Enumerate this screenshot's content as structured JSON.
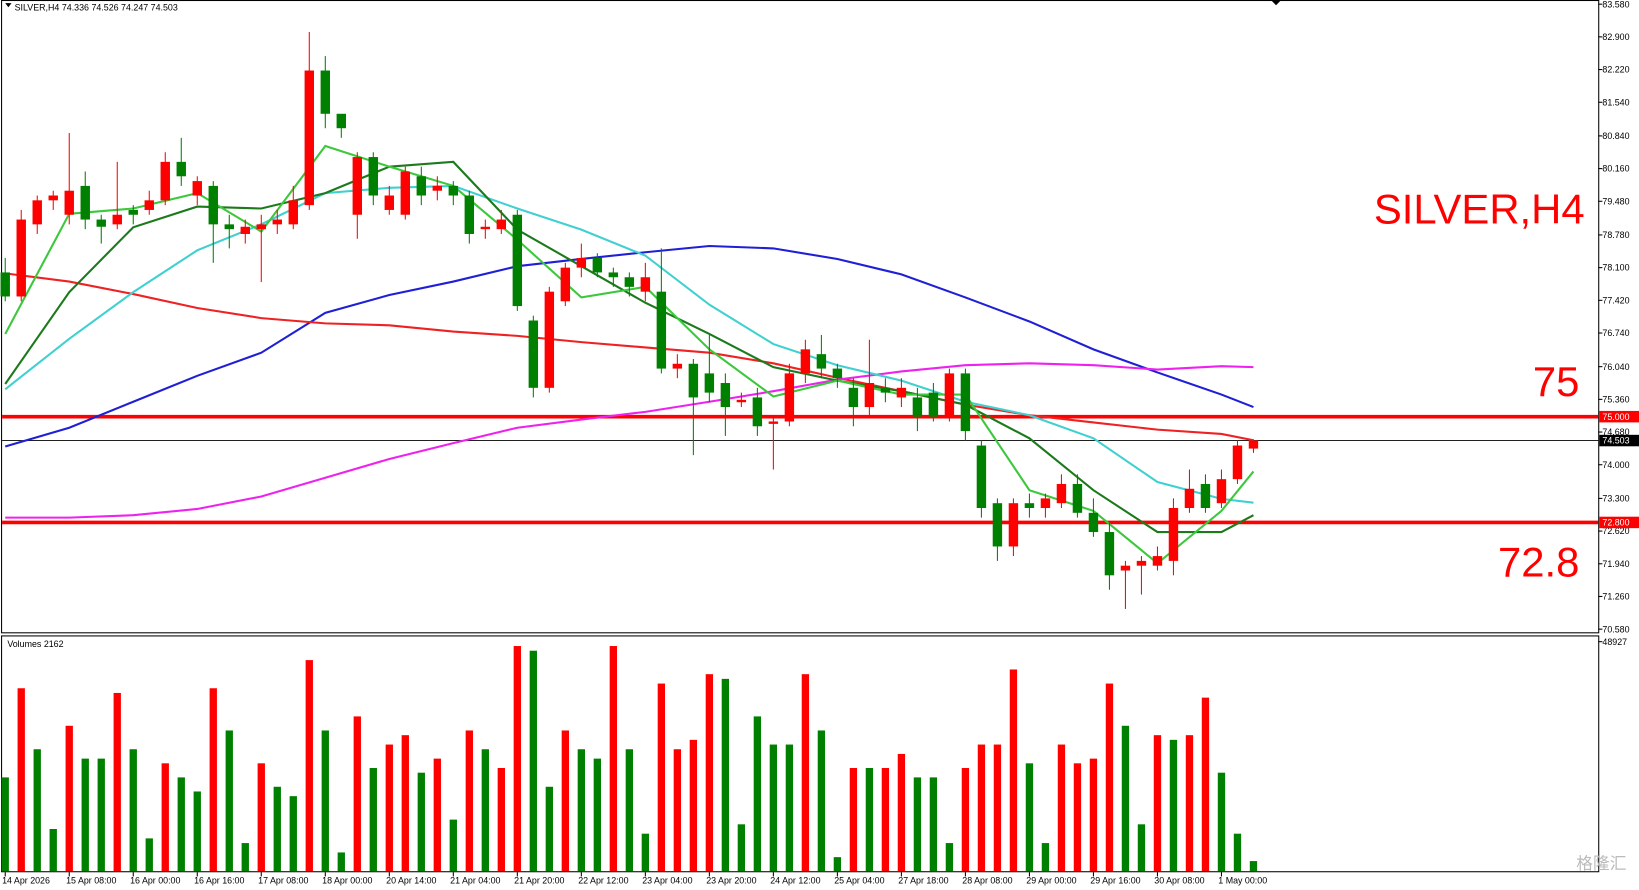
{
  "chart_data": {
    "type": "candlestick",
    "title": "SILVER,H4",
    "watermark": "格隆汇",
    "categories": [
      "14 Apr 2026",
      null,
      null,
      null,
      "15 Apr 08:00",
      null,
      null,
      null,
      "16 Apr 00:00",
      null,
      null,
      null,
      "16 Apr 16:00",
      null,
      null,
      null,
      "17 Apr 08:00",
      null,
      null,
      null,
      "18 Apr 00:00",
      null,
      null,
      null,
      "20 Apr 14:00",
      null,
      null,
      null,
      "21 Apr 04:00",
      null,
      null,
      null,
      "21 Apr 20:00",
      null,
      null,
      null,
      "22 Apr 12:00",
      null,
      null,
      null,
      "23 Apr 04:00",
      null,
      null,
      null,
      "23 Apr 20:00",
      null,
      null,
      null,
      "24 Apr 12:00",
      null,
      null,
      null,
      "25 Apr 04:00",
      null,
      null,
      null,
      "27 Apr 18:00",
      null,
      null,
      null,
      "28 Apr 08:00",
      null,
      null,
      null,
      "29 Apr 00:00",
      null,
      null,
      null,
      "29 Apr 16:00",
      null,
      null,
      null,
      "30 Apr 08:00",
      null,
      null,
      null,
      "1 May 00:00",
      null,
      null
    ],
    "open": [
      78.0,
      77.5,
      79.0,
      79.5,
      79.2,
      79.8,
      79.1,
      79.0,
      79.3,
      79.3,
      79.5,
      80.3,
      79.6,
      79.8,
      79.0,
      78.8,
      78.9,
      79.0,
      79.0,
      79.4,
      82.2,
      81.3,
      79.2,
      80.4,
      79.3,
      79.2,
      80.0,
      79.7,
      79.8,
      79.6,
      78.9,
      78.9,
      79.2,
      77.0,
      75.6,
      77.4,
      78.1,
      78.3,
      78.0,
      77.9,
      77.6,
      77.6,
      76.0,
      76.1,
      75.9,
      75.7,
      75.3,
      75.4,
      74.85,
      74.9,
      75.9,
      76.3,
      76.0,
      75.6,
      75.2,
      75.6,
      75.4,
      75.4,
      75.5,
      75.0,
      75.9,
      74.4,
      73.2,
      72.3,
      73.2,
      73.1,
      73.2,
      73.6,
      73.0,
      72.6,
      71.8,
      71.9,
      71.9,
      72.0,
      73.1,
      73.6,
      73.2,
      73.7,
      74.336
    ],
    "high": [
      78.3,
      79.3,
      79.6,
      79.7,
      80.9,
      80.1,
      79.2,
      80.3,
      79.4,
      79.7,
      80.5,
      80.8,
      80.0,
      79.9,
      79.2,
      79.1,
      79.2,
      79.3,
      79.8,
      83.0,
      82.5,
      81.2,
      80.5,
      80.5,
      79.8,
      80.2,
      80.2,
      80.0,
      79.9,
      79.7,
      79.1,
      79.3,
      79.3,
      77.1,
      77.7,
      78.2,
      78.6,
      78.4,
      78.1,
      78.0,
      78.2,
      78.5,
      76.3,
      76.2,
      76.7,
      75.9,
      75.5,
      75.6,
      75.0,
      76.1,
      76.6,
      76.7,
      76.1,
      75.8,
      76.6,
      75.8,
      75.8,
      75.6,
      75.7,
      76.0,
      76.0,
      74.5,
      73.3,
      73.3,
      73.4,
      73.4,
      73.8,
      73.8,
      73.3,
      72.8,
      72.0,
      72.1,
      72.3,
      73.3,
      73.9,
      73.8,
      73.9,
      74.5,
      74.526
    ],
    "low": [
      77.4,
      77.4,
      78.8,
      79.3,
      79.0,
      78.9,
      78.6,
      78.9,
      79.0,
      79.2,
      79.4,
      79.8,
      79.4,
      78.2,
      78.5,
      78.6,
      77.8,
      78.8,
      78.9,
      79.3,
      81.0,
      80.8,
      78.7,
      79.4,
      79.2,
      79.1,
      79.4,
      79.5,
      79.4,
      78.6,
      78.7,
      78.8,
      77.2,
      75.4,
      75.5,
      77.3,
      77.9,
      77.9,
      77.7,
      77.5,
      77.4,
      75.9,
      75.8,
      74.2,
      75.3,
      74.6,
      75.2,
      74.6,
      73.9,
      74.8,
      75.7,
      75.8,
      75.6,
      74.8,
      75.0,
      75.3,
      75.2,
      74.7,
      74.9,
      74.9,
      74.5,
      72.9,
      72.0,
      72.1,
      72.9,
      72.9,
      73.1,
      72.9,
      72.5,
      71.4,
      71.0,
      71.3,
      71.8,
      71.7,
      73.0,
      73.0,
      73.1,
      73.6,
      74.247
    ],
    "close": [
      77.5,
      79.1,
      79.5,
      79.6,
      79.7,
      79.1,
      78.95,
      79.2,
      79.2,
      79.5,
      80.3,
      80.0,
      79.9,
      79.0,
      78.9,
      78.95,
      79.0,
      79.1,
      79.5,
      82.2,
      81.3,
      81.0,
      80.4,
      79.6,
      79.6,
      80.1,
      79.6,
      79.8,
      79.6,
      78.8,
      78.95,
      79.1,
      77.3,
      75.6,
      77.6,
      78.1,
      78.3,
      78.0,
      77.9,
      77.7,
      77.9,
      76.0,
      76.1,
      75.4,
      75.5,
      75.2,
      75.35,
      74.8,
      74.9,
      75.9,
      76.4,
      76.0,
      75.8,
      75.2,
      75.7,
      75.5,
      75.6,
      75.0,
      75.0,
      75.9,
      74.7,
      73.1,
      72.3,
      73.2,
      73.1,
      73.3,
      73.6,
      73.0,
      72.6,
      71.7,
      71.9,
      72.0,
      72.1,
      73.1,
      73.5,
      73.1,
      73.7,
      74.4,
      74.503
    ],
    "up_color": "#ff0000",
    "down_color": "#008000",
    "ylim": [
      70.58,
      83.58
    ],
    "yticks": [
      {
        "value": 83.58,
        "label": "83.580"
      },
      {
        "value": 82.9,
        "label": "82.900"
      },
      {
        "value": 82.22,
        "label": "82.220"
      },
      {
        "value": 81.54,
        "label": "81.540"
      },
      {
        "value": 80.84,
        "label": "80.840"
      },
      {
        "value": 80.16,
        "label": "80.160"
      },
      {
        "value": 79.48,
        "label": "79.480"
      },
      {
        "value": 78.78,
        "label": "78.780"
      },
      {
        "value": 78.1,
        "label": "78.100"
      },
      {
        "value": 77.42,
        "label": "77.420"
      },
      {
        "value": 76.74,
        "label": "76.740"
      },
      {
        "value": 76.04,
        "label": "76.040"
      },
      {
        "value": 75.36,
        "label": "75.360"
      },
      {
        "value": 74.68,
        "label": "74.680"
      },
      {
        "value": 74.0,
        "label": "74.000"
      },
      {
        "value": 73.3,
        "label": "73.300"
      },
      {
        "value": 72.62,
        "label": "72.620"
      },
      {
        "value": 71.94,
        "label": "71.940"
      },
      {
        "value": 71.26,
        "label": "71.260"
      },
      {
        "value": 70.58,
        "label": "70.580"
      }
    ],
    "lines": [
      {
        "color": "#1f1fd6",
        "x": [
          0,
          4,
          8,
          12,
          16,
          20,
          24,
          28,
          32,
          36,
          40,
          44,
          48,
          52,
          56,
          60,
          64,
          68,
          72,
          76,
          78
        ],
        "values": [
          74.38,
          74.77,
          75.31,
          75.85,
          76.33,
          77.16,
          77.53,
          77.81,
          78.13,
          78.28,
          78.42,
          78.55,
          78.5,
          78.28,
          77.96,
          77.48,
          76.98,
          76.4,
          75.92,
          75.46,
          75.2
        ]
      },
      {
        "color": "#ee2222",
        "x": [
          0,
          4,
          8,
          12,
          16,
          20,
          24,
          28,
          32,
          36,
          40,
          44,
          48,
          52,
          56,
          60,
          64,
          68,
          72,
          76,
          78
        ],
        "values": [
          77.98,
          77.81,
          77.55,
          77.26,
          77.05,
          76.94,
          76.9,
          76.77,
          76.68,
          76.55,
          76.44,
          76.33,
          76.11,
          75.81,
          75.53,
          75.25,
          75.03,
          74.88,
          74.73,
          74.64,
          74.51
        ]
      },
      {
        "color": "#ee22ee",
        "x": [
          0,
          4,
          8,
          12,
          16,
          20,
          24,
          28,
          32,
          36,
          40,
          44,
          48,
          52,
          56,
          60,
          64,
          68,
          72,
          76,
          78
        ],
        "values": [
          72.9,
          72.9,
          72.95,
          73.08,
          73.34,
          73.73,
          74.12,
          74.45,
          74.77,
          74.94,
          75.1,
          75.31,
          75.53,
          75.77,
          75.94,
          76.07,
          76.11,
          76.07,
          75.98,
          76.05,
          76.03
        ]
      },
      {
        "color": "#40d0d0",
        "x": [
          0,
          4,
          8,
          12,
          16,
          20,
          24,
          28,
          32,
          36,
          40,
          44,
          48,
          52,
          56,
          60,
          64,
          68,
          72,
          76,
          78
        ],
        "values": [
          75.57,
          76.62,
          77.59,
          78.46,
          79.0,
          79.65,
          79.76,
          79.8,
          79.33,
          78.89,
          78.35,
          77.33,
          76.51,
          76.07,
          75.75,
          75.31,
          75.03,
          74.55,
          73.64,
          73.29,
          73.21
        ]
      },
      {
        "color": "#1b7a1b",
        "x": [
          0,
          4,
          8,
          12,
          16,
          20,
          24,
          28,
          32,
          36,
          40,
          44,
          48,
          52,
          56,
          60,
          64,
          68,
          72,
          76,
          78
        ],
        "values": [
          75.68,
          77.59,
          78.94,
          79.37,
          79.33,
          79.65,
          80.2,
          80.3,
          78.89,
          78.13,
          77.37,
          76.72,
          76.03,
          75.75,
          75.53,
          75.25,
          74.55,
          73.47,
          72.6,
          72.6,
          72.95
        ]
      },
      {
        "color": "#3cc83c",
        "x": [
          0,
          4,
          8,
          12,
          16,
          20,
          24,
          28,
          32,
          36,
          40,
          44,
          48,
          52,
          56,
          60,
          64,
          68,
          72,
          76,
          78
        ],
        "values": [
          76.72,
          79.22,
          79.33,
          79.65,
          78.85,
          80.63,
          80.2,
          79.8,
          78.68,
          77.48,
          77.7,
          76.4,
          75.42,
          75.75,
          75.46,
          75.46,
          73.47,
          73.04,
          71.95,
          73.04,
          73.86
        ]
      }
    ],
    "hlines": [
      {
        "value": 75.0,
        "label": "75.000",
        "annotation": "75",
        "color": "#ff0000"
      },
      {
        "value": 72.8,
        "label": "72.800",
        "annotation": "72.8",
        "color": "#ff0000"
      },
      {
        "value": 74.503,
        "label": "74.503",
        "color": "#000000"
      }
    ],
    "volume": {
      "title": "Volumes",
      "values": [
        20000,
        39000,
        26000,
        9000,
        31000,
        24000,
        24000,
        38000,
        26000,
        7000,
        23000,
        20000,
        17000,
        39000,
        30000,
        6000,
        23000,
        18000,
        16000,
        45000,
        30000,
        4000,
        33000,
        22000,
        27000,
        29000,
        21000,
        24000,
        11000,
        30000,
        26000,
        22000,
        48000,
        47000,
        18000,
        30000,
        26000,
        24000,
        48000,
        26000,
        8000,
        40000,
        26000,
        28000,
        42000,
        41000,
        10000,
        33000,
        27000,
        27000,
        42000,
        30000,
        3000,
        22000,
        22000,
        22000,
        25000,
        20000,
        20000,
        6000,
        22000,
        27000,
        27000,
        43000,
        23000,
        6000,
        27000,
        23000,
        24000,
        40000,
        31000,
        10000,
        29000,
        28000,
        29000,
        37000,
        21000,
        8000,
        2162
      ],
      "colors": [
        "#008000",
        "#ff0000",
        "#008000",
        "#008000",
        "#ff0000",
        "#008000",
        "#008000",
        "#ff0000",
        "#008000",
        "#008000",
        "#ff0000",
        "#008000",
        "#008000",
        "#ff0000",
        "#008000",
        "#008000",
        "#ff0000",
        "#008000",
        "#008000",
        "#ff0000",
        "#008000",
        "#008000",
        "#ff0000",
        "#008000",
        "#ff0000",
        "#ff0000",
        "#008000",
        "#ff0000",
        "#008000",
        "#ff0000",
        "#008000",
        "#ff0000",
        "#ff0000",
        "#008000",
        "#008000",
        "#ff0000",
        "#008000",
        "#008000",
        "#ff0000",
        "#008000",
        "#008000",
        "#ff0000",
        "#ff0000",
        "#ff0000",
        "#ff0000",
        "#008000",
        "#008000",
        "#008000",
        "#008000",
        "#008000",
        "#ff0000",
        "#008000",
        "#008000",
        "#ff0000",
        "#008000",
        "#ff0000",
        "#ff0000",
        "#008000",
        "#008000",
        "#008000",
        "#ff0000",
        "#ff0000",
        "#ff0000",
        "#ff0000",
        "#008000",
        "#008000",
        "#ff0000",
        "#ff0000",
        "#ff0000",
        "#ff0000",
        "#008000",
        "#008000",
        "#ff0000",
        "#008000",
        "#ff0000",
        "#ff0000",
        "#008000",
        "#008000",
        "#008000"
      ],
      "ylim": [
        0,
        48927
      ],
      "yticks": [
        48927
      ]
    }
  }
}
